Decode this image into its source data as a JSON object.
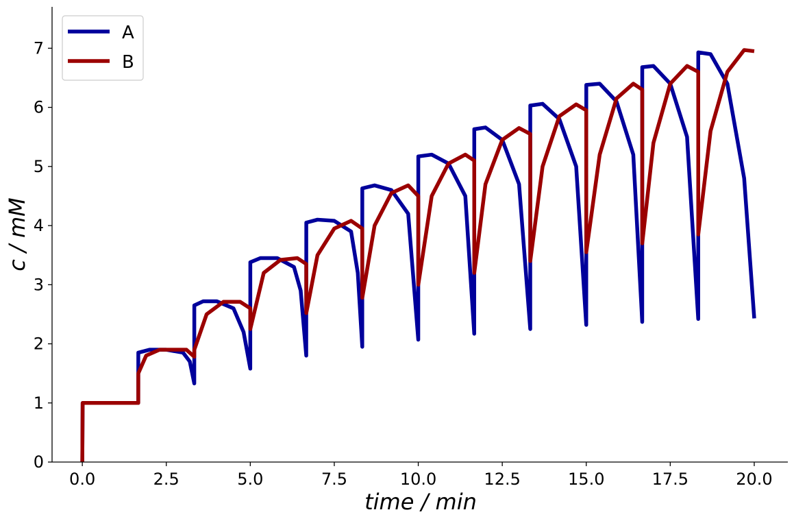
{
  "chart_data": {
    "type": "line",
    "xlabel": "time / min",
    "ylabel": "c / mM",
    "xlim": [
      -0.9,
      21.0
    ],
    "ylim": [
      0,
      7.7
    ],
    "xticks": [
      0.0,
      2.5,
      5.0,
      7.5,
      10.0,
      12.5,
      15.0,
      17.5,
      20.0
    ],
    "xtick_labels": [
      "0.0",
      "2.5",
      "5.0",
      "7.5",
      "10.0",
      "12.5",
      "15.0",
      "17.5",
      "20.0"
    ],
    "yticks": [
      0,
      1,
      2,
      3,
      4,
      5,
      6,
      7
    ],
    "ytick_labels": [
      "0",
      "1",
      "2",
      "3",
      "4",
      "5",
      "6",
      "7"
    ],
    "grid": false,
    "legend": {
      "position": "top-left"
    },
    "series": [
      {
        "name": "A",
        "color": "#00009b",
        "x": [
          0,
          0.01,
          0.3,
          1.0,
          1.666,
          1.667,
          2.0,
          2.5,
          3.0,
          3.2,
          3.333,
          3.334,
          3.6,
          4.0,
          4.5,
          4.8,
          5.0,
          5.001,
          5.3,
          5.8,
          6.3,
          6.5,
          6.666,
          6.667,
          7.0,
          7.5,
          8.0,
          8.2,
          8.333,
          8.334,
          8.7,
          9.2,
          9.7,
          10.0,
          10.001,
          10.4,
          10.9,
          11.4,
          11.666,
          11.667,
          12.0,
          12.5,
          13.0,
          13.333,
          13.334,
          13.7,
          14.2,
          14.7,
          15.0,
          15.001,
          15.4,
          15.9,
          16.4,
          16.666,
          16.667,
          17.0,
          17.5,
          18.0,
          18.333,
          18.334,
          18.7,
          19.2,
          19.7,
          20.0
        ],
        "y": [
          0,
          1.0,
          1.0,
          1.0,
          1.0,
          1.85,
          1.9,
          1.9,
          1.85,
          1.7,
          1.33,
          2.65,
          2.72,
          2.72,
          2.6,
          2.2,
          1.58,
          3.38,
          3.45,
          3.45,
          3.3,
          2.9,
          1.8,
          4.05,
          4.1,
          4.08,
          3.9,
          3.2,
          1.95,
          4.63,
          4.68,
          4.6,
          4.2,
          2.07,
          5.17,
          5.2,
          5.05,
          4.5,
          2.17,
          5.63,
          5.66,
          5.45,
          4.7,
          2.25,
          6.03,
          6.06,
          5.8,
          5.0,
          2.32,
          6.38,
          6.4,
          6.1,
          5.2,
          2.37,
          6.68,
          6.7,
          6.4,
          5.5,
          2.42,
          6.93,
          6.9,
          6.4,
          4.8,
          2.43
        ]
      },
      {
        "name": "B",
        "color": "#9b0000",
        "x": [
          0,
          0.01,
          0.3,
          1.0,
          1.666,
          1.667,
          1.9,
          2.3,
          2.7,
          3.1,
          3.333,
          3.334,
          3.7,
          4.2,
          4.7,
          5.0,
          5.001,
          5.4,
          5.9,
          6.4,
          6.666,
          6.667,
          7.0,
          7.5,
          8.0,
          8.333,
          8.334,
          8.7,
          9.2,
          9.7,
          10.0,
          10.001,
          10.4,
          10.9,
          11.4,
          11.666,
          11.667,
          12.0,
          12.5,
          13.0,
          13.333,
          13.334,
          13.7,
          14.2,
          14.7,
          15.0,
          15.001,
          15.4,
          15.9,
          16.4,
          16.666,
          16.667,
          17.0,
          17.5,
          18.0,
          18.333,
          18.334,
          18.7,
          19.2,
          19.7,
          20.0
        ],
        "y": [
          0,
          1.0,
          1.0,
          1.0,
          1.0,
          1.5,
          1.8,
          1.9,
          1.9,
          1.9,
          1.78,
          1.9,
          2.5,
          2.71,
          2.71,
          2.6,
          2.25,
          3.2,
          3.42,
          3.45,
          3.35,
          2.52,
          3.5,
          3.95,
          4.08,
          3.95,
          2.78,
          4.0,
          4.55,
          4.68,
          4.5,
          3.0,
          4.5,
          5.05,
          5.2,
          5.1,
          3.2,
          4.7,
          5.45,
          5.65,
          5.55,
          3.4,
          5.0,
          5.85,
          6.05,
          5.95,
          3.55,
          5.2,
          6.15,
          6.4,
          6.3,
          3.7,
          5.4,
          6.4,
          6.7,
          6.6,
          3.85,
          5.6,
          6.6,
          6.97,
          6.95
        ]
      }
    ]
  }
}
